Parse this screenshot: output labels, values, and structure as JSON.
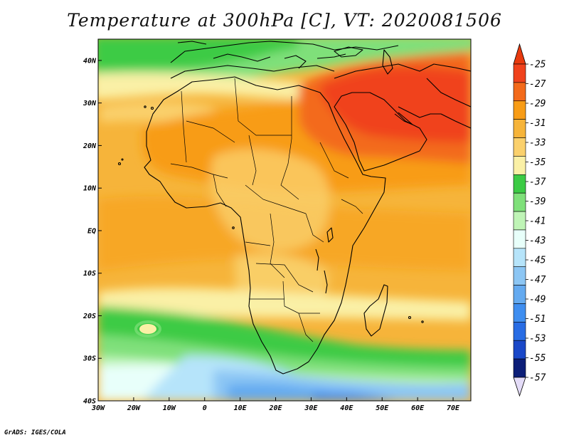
{
  "title": "Temperature at 300hPa [C], VT: 2020081506",
  "footer": "GrADS: IGES/COLA",
  "map": {
    "lon_range": [
      -30,
      75
    ],
    "lat_range": [
      -40,
      45
    ],
    "x_ticks": [
      "30W",
      "20W",
      "10W",
      "0",
      "10E",
      "20E",
      "30E",
      "40E",
      "50E",
      "60E",
      "70E"
    ],
    "y_ticks": [
      "40N",
      "30N",
      "20N",
      "10N",
      "EQ",
      "10S",
      "20S",
      "30S",
      "40S"
    ]
  },
  "colorbar": {
    "labels": [
      "-25",
      "-27",
      "-29",
      "-31",
      "-33",
      "-35",
      "-37",
      "-39",
      "-41",
      "-43",
      "-45",
      "-47",
      "-49",
      "-51",
      "-53",
      "-55",
      "-57"
    ],
    "colors": [
      "#f0421c",
      "#f36a1a",
      "#f89c16",
      "#f6b43a",
      "#fad06c",
      "#faf0a6",
      "#3ccb45",
      "#7fe07a",
      "#bff4b6",
      "#e8fffa",
      "#b6e4fa",
      "#8cc6f4",
      "#64aaf0",
      "#3f8ef0",
      "#286ce4",
      "#1a48c8",
      "#0c1e78"
    ],
    "top_arrow_color": "#e83a0e",
    "bottom_arrow_color": "#e4dcf8"
  }
}
